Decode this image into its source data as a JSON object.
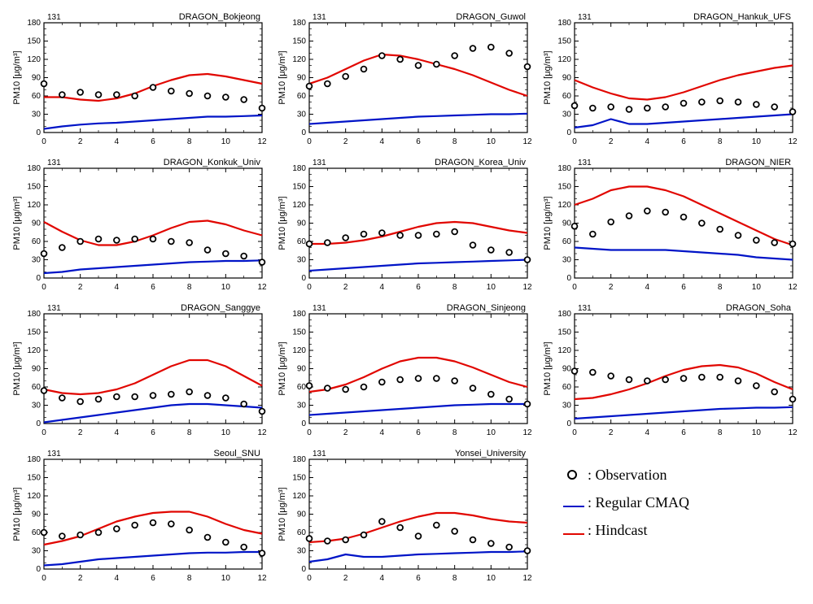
{
  "global": {
    "ylabel": "PM10 [μg/m³]",
    "ylabel_fontsize": 11,
    "tick_fontsize": 10,
    "title_fontsize": 11,
    "corner_label": "131",
    "corner_fontsize": 10,
    "xlim": [
      0,
      12
    ],
    "ylim": [
      0,
      180
    ],
    "xticks": [
      0,
      2,
      4,
      6,
      8,
      10,
      12
    ],
    "yticks": [
      0,
      30,
      60,
      90,
      120,
      150,
      180
    ],
    "background_color": "#ffffff",
    "axis_color": "#000000",
    "minor_x": [
      1,
      3,
      5,
      7,
      9,
      11
    ],
    "minor_y": [
      10,
      20,
      40,
      50,
      70,
      80,
      100,
      110,
      130,
      140,
      160,
      170
    ],
    "colors": {
      "observation": "#000000",
      "regular_cmaq": "#0014c7",
      "hindcast": "#e10600"
    },
    "line_width": 2.2,
    "marker_radius": 3.4,
    "marker_stroke": 1.8
  },
  "legend": {
    "items": [
      {
        "symbol": "circle",
        "label": ": Observation",
        "color": "#000000"
      },
      {
        "symbol": "line",
        "label": ": Regular CMAQ",
        "color": "#0014c7"
      },
      {
        "symbol": "line",
        "label": ": Hindcast",
        "color": "#e10600"
      }
    ]
  },
  "panels": [
    {
      "title": "DRAGON_Bokjeong",
      "x": [
        0,
        1,
        2,
        3,
        4,
        5,
        6,
        7,
        8,
        9,
        10,
        11,
        12
      ],
      "observation": [
        80,
        62,
        66,
        62,
        62,
        60,
        74,
        68,
        64,
        60,
        58,
        54,
        40
      ],
      "regular_cmaq": [
        6,
        10,
        13,
        15,
        16,
        18,
        20,
        22,
        24,
        26,
        26,
        27,
        28
      ],
      "hindcast": [
        58,
        58,
        54,
        52,
        56,
        64,
        76,
        86,
        94,
        96,
        92,
        86,
        80
      ]
    },
    {
      "title": "DRAGON_Guwol",
      "x": [
        0,
        1,
        2,
        3,
        4,
        5,
        6,
        7,
        8,
        9,
        10,
        11,
        12
      ],
      "observation": [
        76,
        80,
        92,
        104,
        126,
        120,
        110,
        112,
        126,
        138,
        140,
        130,
        108
      ],
      "regular_cmaq": [
        14,
        16,
        18,
        20,
        22,
        24,
        26,
        27,
        28,
        29,
        30,
        30,
        31
      ],
      "hindcast": [
        80,
        90,
        104,
        118,
        128,
        126,
        120,
        112,
        104,
        94,
        82,
        70,
        60
      ]
    },
    {
      "title": "DRAGON_Hankuk_UFS",
      "x": [
        0,
        1,
        2,
        3,
        4,
        5,
        6,
        7,
        8,
        9,
        10,
        11,
        12
      ],
      "observation": [
        44,
        40,
        42,
        38,
        40,
        42,
        48,
        50,
        52,
        50,
        46,
        42,
        34
      ],
      "regular_cmaq": [
        8,
        12,
        22,
        14,
        14,
        16,
        18,
        20,
        22,
        24,
        26,
        28,
        30
      ],
      "hindcast": [
        86,
        74,
        64,
        56,
        54,
        58,
        66,
        76,
        86,
        94,
        100,
        106,
        110
      ]
    },
    {
      "title": "DRAGON_Konkuk_Univ",
      "x": [
        0,
        1,
        2,
        3,
        4,
        5,
        6,
        7,
        8,
        9,
        10,
        11,
        12
      ],
      "observation": [
        40,
        50,
        60,
        64,
        62,
        64,
        64,
        60,
        58,
        46,
        40,
        36,
        26
      ],
      "regular_cmaq": [
        8,
        10,
        14,
        16,
        18,
        20,
        22,
        24,
        26,
        27,
        28,
        28,
        29
      ],
      "hindcast": [
        92,
        76,
        62,
        54,
        54,
        60,
        70,
        82,
        92,
        94,
        88,
        78,
        70
      ]
    },
    {
      "title": "DRAGON_Korea_Univ",
      "x": [
        0,
        1,
        2,
        3,
        4,
        5,
        6,
        7,
        8,
        9,
        10,
        11,
        12
      ],
      "observation": [
        56,
        58,
        66,
        72,
        74,
        70,
        70,
        72,
        76,
        54,
        46,
        42,
        30
      ],
      "regular_cmaq": [
        12,
        14,
        16,
        18,
        20,
        22,
        24,
        25,
        26,
        27,
        28,
        29,
        30
      ],
      "hindcast": [
        56,
        56,
        58,
        62,
        68,
        76,
        84,
        90,
        92,
        90,
        84,
        78,
        74
      ]
    },
    {
      "title": "DRAGON_NIER",
      "x": [
        0,
        1,
        2,
        3,
        4,
        5,
        6,
        7,
        8,
        9,
        10,
        11,
        12
      ],
      "observation": [
        85,
        72,
        92,
        102,
        110,
        108,
        100,
        90,
        80,
        70,
        62,
        58,
        56
      ],
      "regular_cmaq": [
        50,
        48,
        46,
        46,
        46,
        46,
        44,
        42,
        40,
        38,
        34,
        32,
        30
      ],
      "hindcast": [
        120,
        130,
        144,
        150,
        150,
        144,
        134,
        120,
        106,
        92,
        78,
        64,
        54
      ]
    },
    {
      "title": "DRAGON_Sanggye",
      "x": [
        0,
        1,
        2,
        3,
        4,
        5,
        6,
        7,
        8,
        9,
        10,
        11,
        12
      ],
      "observation": [
        54,
        42,
        36,
        40,
        44,
        44,
        46,
        48,
        52,
        46,
        42,
        32,
        20
      ],
      "regular_cmaq": [
        2,
        6,
        10,
        14,
        18,
        22,
        26,
        30,
        32,
        32,
        30,
        28,
        26
      ],
      "hindcast": [
        56,
        50,
        48,
        50,
        56,
        66,
        80,
        94,
        104,
        104,
        94,
        78,
        62
      ]
    },
    {
      "title": "DRAGON_Sinjeong",
      "x": [
        0,
        1,
        2,
        3,
        4,
        5,
        6,
        7,
        8,
        9,
        10,
        11,
        12
      ],
      "observation": [
        62,
        58,
        56,
        60,
        68,
        72,
        74,
        74,
        70,
        58,
        48,
        40,
        32
      ],
      "regular_cmaq": [
        14,
        16,
        18,
        20,
        22,
        24,
        26,
        28,
        30,
        31,
        32,
        32,
        32
      ],
      "hindcast": [
        52,
        56,
        64,
        76,
        90,
        102,
        108,
        108,
        102,
        92,
        80,
        68,
        60
      ]
    },
    {
      "title": "DRAGON_Soha",
      "x": [
        0,
        1,
        2,
        3,
        4,
        5,
        6,
        7,
        8,
        9,
        10,
        11,
        12
      ],
      "observation": [
        86,
        84,
        78,
        72,
        70,
        72,
        74,
        76,
        76,
        70,
        62,
        52,
        40
      ],
      "regular_cmaq": [
        8,
        10,
        12,
        14,
        16,
        18,
        20,
        22,
        24,
        25,
        26,
        26,
        27
      ],
      "hindcast": [
        40,
        42,
        48,
        56,
        66,
        78,
        88,
        94,
        96,
        92,
        82,
        68,
        56
      ]
    },
    {
      "title": "Seoul_SNU",
      "x": [
        0,
        1,
        2,
        3,
        4,
        5,
        6,
        7,
        8,
        9,
        10,
        11,
        12
      ],
      "observation": [
        60,
        54,
        56,
        60,
        66,
        72,
        76,
        74,
        64,
        52,
        44,
        36,
        26
      ],
      "regular_cmaq": [
        6,
        8,
        12,
        16,
        18,
        20,
        22,
        24,
        26,
        27,
        27,
        28,
        28
      ],
      "hindcast": [
        40,
        46,
        54,
        66,
        78,
        86,
        92,
        94,
        94,
        86,
        74,
        64,
        58
      ]
    },
    {
      "title": "Yonsei_University",
      "x": [
        0,
        1,
        2,
        3,
        4,
        5,
        6,
        7,
        8,
        9,
        10,
        11,
        12
      ],
      "observation": [
        50,
        46,
        48,
        56,
        78,
        68,
        54,
        72,
        62,
        48,
        42,
        36,
        30
      ],
      "regular_cmaq": [
        12,
        16,
        24,
        20,
        20,
        22,
        24,
        25,
        26,
        27,
        28,
        28,
        29
      ],
      "hindcast": [
        44,
        46,
        50,
        58,
        68,
        78,
        86,
        92,
        92,
        88,
        82,
        78,
        76
      ]
    }
  ]
}
